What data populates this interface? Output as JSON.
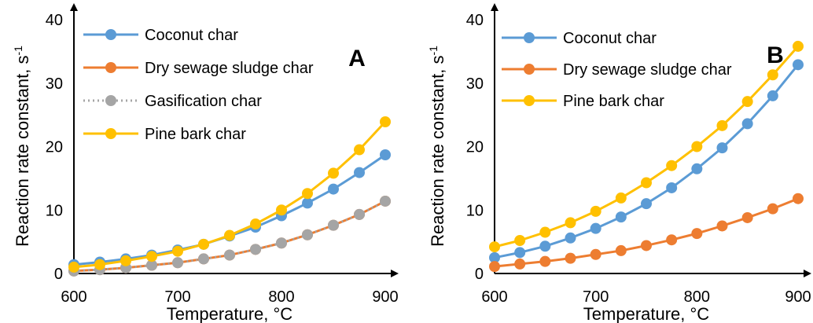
{
  "chart_data": [
    {
      "type": "line",
      "panel_label": "A",
      "xlabel": "Temperature, °C",
      "ylabel": "Reaction rate constant, s",
      "ylabel_sup": "-1",
      "xlim": [
        600,
        900
      ],
      "ylim": [
        0,
        40
      ],
      "xticks": [
        "600",
        "700",
        "800",
        "900"
      ],
      "yticks": [
        "0",
        "10",
        "20",
        "30",
        "40"
      ],
      "grid": false,
      "legend_position": "top-left",
      "x": [
        600,
        625,
        650,
        675,
        700,
        725,
        750,
        775,
        800,
        825,
        850,
        875,
        900
      ],
      "series": [
        {
          "name": "Coconut char",
          "color": "#5B9BD5",
          "style": "solid",
          "values": [
            1.4,
            1.8,
            2.3,
            2.9,
            3.7,
            4.6,
            5.9,
            7.3,
            9.1,
            11.1,
            13.3,
            15.9,
            18.7
          ]
        },
        {
          "name": "Dry sewage sludge char",
          "color": "#ED7D31",
          "style": "solid",
          "values": [
            0.4,
            0.6,
            0.9,
            1.3,
            1.7,
            2.3,
            2.9,
            3.8,
            4.8,
            6.1,
            7.6,
            9.3,
            11.4
          ]
        },
        {
          "name": "Gasification char",
          "color": "#A5A5A5",
          "style": "dotted",
          "values": [
            0.4,
            0.6,
            0.9,
            1.3,
            1.7,
            2.3,
            2.9,
            3.8,
            4.8,
            6.1,
            7.6,
            9.3,
            11.4
          ]
        },
        {
          "name": "Pine bark char",
          "color": "#FFC000",
          "style": "solid",
          "values": [
            1.0,
            1.4,
            2.0,
            2.7,
            3.5,
            4.6,
            6.0,
            7.8,
            10.0,
            12.6,
            15.8,
            19.5,
            23.9
          ]
        }
      ]
    },
    {
      "type": "line",
      "panel_label": "B",
      "xlabel": "Temperature, °C",
      "ylabel": "Reaction rate constant, s",
      "ylabel_sup": "-1",
      "xlim": [
        600,
        900
      ],
      "ylim": [
        0,
        40
      ],
      "xticks": [
        "600",
        "700",
        "800",
        "900"
      ],
      "yticks": [
        "0",
        "10",
        "20",
        "30",
        "40"
      ],
      "grid": false,
      "legend_position": "top-left",
      "x": [
        600,
        625,
        650,
        675,
        700,
        725,
        750,
        775,
        800,
        825,
        850,
        875,
        900
      ],
      "series": [
        {
          "name": "Coconut char",
          "color": "#5B9BD5",
          "style": "solid",
          "values": [
            2.5,
            3.3,
            4.3,
            5.6,
            7.1,
            8.9,
            11.0,
            13.5,
            16.5,
            19.8,
            23.6,
            28.0,
            32.9
          ]
        },
        {
          "name": "Dry sewage sludge char",
          "color": "#ED7D31",
          "style": "solid",
          "values": [
            1.1,
            1.5,
            1.9,
            2.4,
            3.0,
            3.6,
            4.4,
            5.3,
            6.3,
            7.5,
            8.8,
            10.2,
            11.8
          ]
        },
        {
          "name": "Pine bark char",
          "color": "#FFC000",
          "style": "solid",
          "values": [
            4.2,
            5.2,
            6.5,
            8.0,
            9.8,
            11.9,
            14.3,
            17.0,
            20.0,
            23.3,
            27.1,
            31.3,
            35.8
          ]
        }
      ]
    }
  ]
}
